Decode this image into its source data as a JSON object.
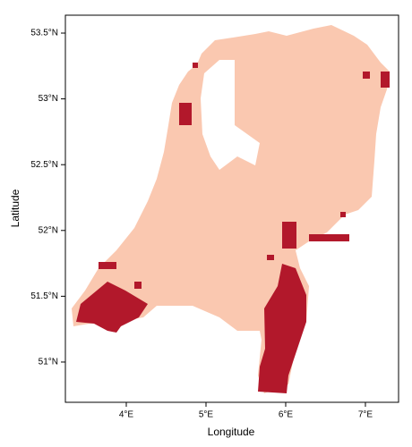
{
  "chart_data": {
    "type": "map",
    "xlabel": "Longitude",
    "ylabel": "Latitude",
    "xlim": [
      3.236,
      7.416
    ],
    "ylim": [
      50.694,
      53.636
    ],
    "xticks": [
      {
        "value": 4,
        "label": "4°E"
      },
      {
        "value": 5,
        "label": "5°E"
      },
      {
        "value": 6,
        "label": "6°E"
      },
      {
        "value": 7,
        "label": "7°E"
      }
    ],
    "yticks": [
      {
        "value": 51,
        "label": "51°N"
      },
      {
        "value": 51.5,
        "label": "51.5°N"
      },
      {
        "value": 52,
        "label": "52°N"
      },
      {
        "value": 52.5,
        "label": "52.5°N"
      },
      {
        "value": 53,
        "label": "53°N"
      },
      {
        "value": 53.5,
        "label": "53.5°N"
      }
    ]
  }
}
